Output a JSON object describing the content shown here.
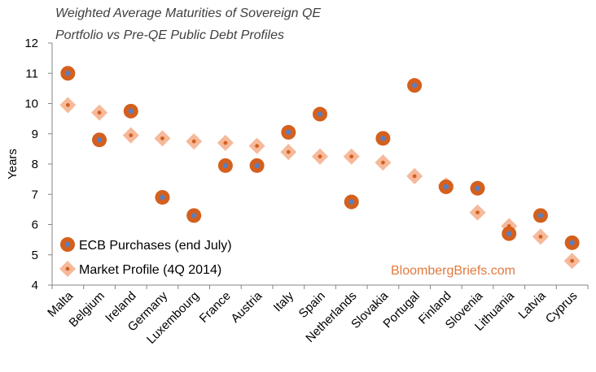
{
  "chart_data": {
    "type": "scatter",
    "title_lines": [
      "Weighted Average Maturities of  Sovereign QE",
      "Portfolio vs Pre-QE Public Debt Profiles"
    ],
    "ylabel": "Years",
    "ylim": [
      4,
      12
    ],
    "yticks": [
      4,
      5,
      6,
      7,
      8,
      9,
      10,
      11,
      12
    ],
    "categories": [
      "Malta",
      "Belgium",
      "Ireland",
      "Germany",
      "Luxembourg",
      "France",
      "Austria",
      "Italy",
      "Spain",
      "Netherlands",
      "Slovakia",
      "Portugal",
      "Finland",
      "Slovenia",
      "Lithuania",
      "Latvia",
      "Cyprus"
    ],
    "series": [
      {
        "name": "ECB Purchases (end July)",
        "marker": "circle",
        "color": "#D4601E",
        "center_color": "#5B7EC0",
        "values": [
          11.0,
          8.8,
          9.75,
          6.9,
          6.3,
          7.95,
          7.95,
          9.05,
          9.65,
          6.75,
          8.85,
          10.6,
          7.25,
          7.2,
          5.7,
          6.3,
          5.4
        ]
      },
      {
        "name": "Market Profile (4Q 2014)",
        "marker": "diamond",
        "color": "#F6B99A",
        "center_color": "#D4601E",
        "values": [
          9.95,
          9.7,
          8.95,
          8.85,
          8.75,
          8.7,
          8.6,
          8.4,
          8.25,
          8.25,
          8.05,
          7.6,
          7.3,
          6.4,
          5.95,
          5.6,
          4.8
        ]
      }
    ],
    "legend_position": "bottom-left",
    "grid": false,
    "source_text": "BloombergBriefs.com",
    "source_color": "#E07A3E"
  }
}
